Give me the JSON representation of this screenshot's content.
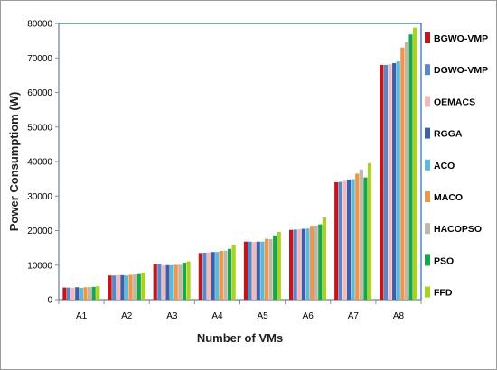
{
  "chart_data": {
    "type": "bar",
    "xlabel": "Number of VMs",
    "ylabel": "Power Consumptiom (W)",
    "ylim": [
      0,
      80000
    ],
    "yticks": [
      0,
      10000,
      20000,
      30000,
      40000,
      50000,
      60000,
      70000,
      80000
    ],
    "grid": false,
    "legend_position": "right",
    "categories": [
      "A1",
      "A2",
      "A3",
      "A4",
      "A5",
      "A6",
      "A7",
      "A8"
    ],
    "series": [
      {
        "name": "BGWO-VMP",
        "color": "#c0171f",
        "values": [
          3500,
          7000,
          10300,
          13500,
          16800,
          20200,
          34000,
          68000
        ]
      },
      {
        "name": "DGWO-VMP",
        "color": "#5b87c9",
        "values": [
          3500,
          7000,
          10300,
          13600,
          16800,
          20300,
          34100,
          68000
        ]
      },
      {
        "name": "OEMACS",
        "color": "#f2b9bb",
        "values": [
          3500,
          7100,
          10000,
          13700,
          16700,
          20400,
          34400,
          68200
        ]
      },
      {
        "name": "RGGA",
        "color": "#3d5fa8",
        "values": [
          3600,
          7100,
          10000,
          13800,
          16800,
          20500,
          34800,
          68500
        ]
      },
      {
        "name": "ACO",
        "color": "#5cb9d9",
        "values": [
          3400,
          7000,
          10000,
          13800,
          16800,
          20600,
          34900,
          69000
        ]
      },
      {
        "name": "MACO",
        "color": "#f0964a",
        "values": [
          3600,
          7200,
          10100,
          14100,
          17600,
          21400,
          36500,
          73000
        ]
      },
      {
        "name": "HACOPSO",
        "color": "#bdb8a7",
        "values": [
          3600,
          7300,
          10100,
          14200,
          17500,
          21500,
          37700,
          74500
        ]
      },
      {
        "name": "PSO",
        "color": "#1aa54a",
        "values": [
          3700,
          7400,
          10700,
          14700,
          18600,
          21800,
          35400,
          76800
        ]
      },
      {
        "name": "FFD",
        "color": "#a8d31e",
        "values": [
          3900,
          7800,
          11100,
          15800,
          19600,
          23800,
          39500,
          78800
        ]
      }
    ]
  },
  "colors": {
    "plot_border": "#2f6fd6",
    "frame_border": "#9a9a9a",
    "axis_line": "#8c8c8c"
  }
}
